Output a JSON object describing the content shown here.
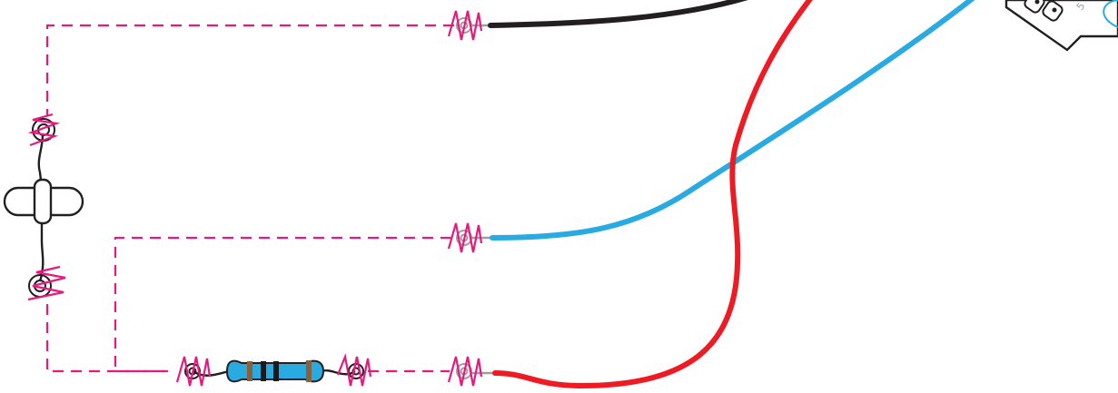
{
  "colors": {
    "background": "#ffffff",
    "ratsnest": "#e6197f",
    "wire_black": "#231f20",
    "wire_red": "#ed1c24",
    "wire_blue": "#29abe2",
    "lead_grey": "#9e9e9e",
    "component_lead": "#231f20",
    "resistor_body": "#29abe2",
    "resistor_band_dark": "#1a1a1a",
    "resistor_band_brown": "#8b5e3c",
    "board_outline": "#231f20",
    "board_accent": "#29abe2"
  },
  "components": {
    "pushbutton": {
      "icon": "pushbutton-icon"
    },
    "resistor": {
      "icon": "resistor-icon",
      "bands": [
        "brown",
        "dark",
        "dark",
        "brown"
      ]
    },
    "connectors": [
      "top-connector-icon",
      "middle-connector-icon",
      "bottom-connector-icon"
    ]
  },
  "board": {
    "partial_label": "5"
  }
}
